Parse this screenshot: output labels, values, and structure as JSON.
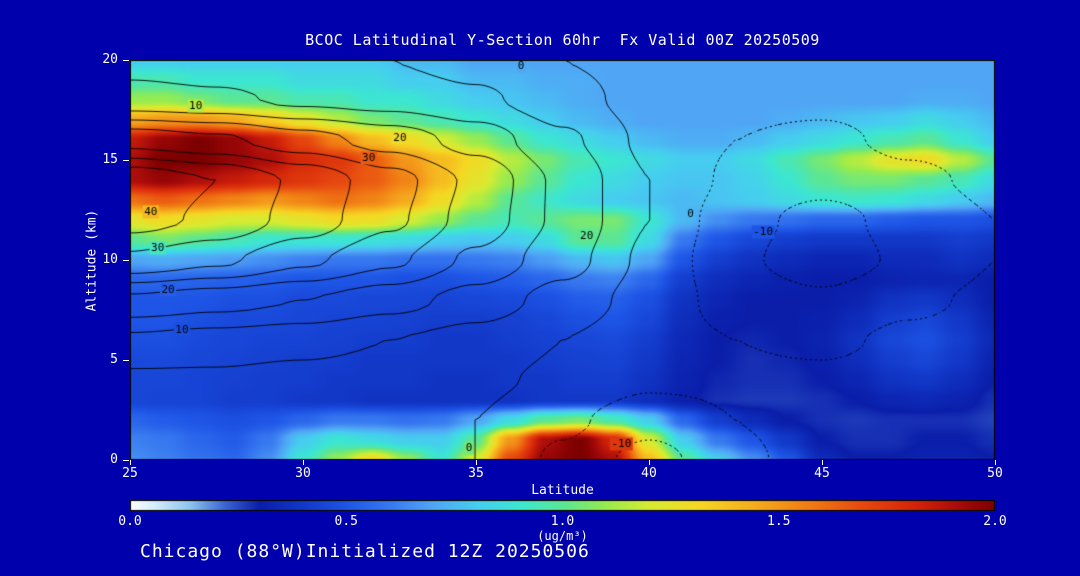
{
  "colors": {
    "background": "#0000AC",
    "text": "#FFFFFF",
    "frame": "#000000",
    "contour_line": "#000000"
  },
  "chart_data": {
    "type": "heatmap",
    "subtype": "filled-contour latitude-altitude cross-section with overlaid line contours",
    "title": "BCOC Latitudinal Y-Section 60hr  Fx Valid 00Z 20250509",
    "annotation": "Chicago (88°W)Initialized 12Z 20250506",
    "xlabel": "Latitude",
    "ylabel": "Altitude (km)",
    "xlim": [
      25,
      50
    ],
    "ylim": [
      0,
      20
    ],
    "x_ticks": [
      {
        "value": 25,
        "label": "25"
      },
      {
        "value": 30,
        "label": "30"
      },
      {
        "value": 35,
        "label": "35"
      },
      {
        "value": 40,
        "label": "40"
      },
      {
        "value": 45,
        "label": "45"
      },
      {
        "value": 50,
        "label": "50"
      }
    ],
    "y_ticks": [
      {
        "value": 0,
        "label": "0"
      },
      {
        "value": 5,
        "label": "5"
      },
      {
        "value": 10,
        "label": "10"
      },
      {
        "value": 15,
        "label": "15"
      },
      {
        "value": 20,
        "label": "20"
      }
    ],
    "colorbar": {
      "range": [
        0,
        2
      ],
      "ticks": [
        {
          "value": 0,
          "label": "0.0"
        },
        {
          "value": 0.5,
          "label": "0.5"
        },
        {
          "value": 1,
          "label": "1.0"
        },
        {
          "value": 1.5,
          "label": "1.5"
        },
        {
          "value": 2,
          "label": "2.0"
        }
      ],
      "unit_label": "(ug/m³)"
    },
    "colormap": [
      [
        0.0,
        "#FFFFFF"
      ],
      [
        0.06,
        "#D2ECFA"
      ],
      [
        0.14,
        "#8CC3EE"
      ],
      [
        0.22,
        "#3C64D2"
      ],
      [
        0.3,
        "#0A1EAA"
      ],
      [
        0.4,
        "#1238C8"
      ],
      [
        0.5,
        "#1E55E6"
      ],
      [
        0.6,
        "#3778F0"
      ],
      [
        0.7,
        "#50A5F5"
      ],
      [
        0.8,
        "#46CDF0"
      ],
      [
        0.9,
        "#3CE6D2"
      ],
      [
        1.0,
        "#5AE696"
      ],
      [
        1.1,
        "#96EB50"
      ],
      [
        1.2,
        "#D7EB32"
      ],
      [
        1.32,
        "#F5D723"
      ],
      [
        1.45,
        "#F5AA1E"
      ],
      [
        1.58,
        "#F07814"
      ],
      [
        1.7,
        "#E6460F"
      ],
      [
        1.82,
        "#D2230A"
      ],
      [
        1.92,
        "#A50A0A"
      ],
      [
        2.0,
        "#7D0000"
      ]
    ],
    "fill_field": {
      "units": "ug/m3",
      "lats": [
        25,
        26,
        27,
        28,
        29,
        30,
        31,
        32,
        33,
        34,
        35,
        36,
        37,
        38,
        39,
        40,
        41,
        42,
        43,
        44,
        45,
        46,
        47,
        48,
        49,
        50
      ],
      "alts": [
        0,
        1,
        2,
        3,
        4,
        5,
        6,
        7,
        8,
        9,
        10,
        11,
        12,
        13,
        14,
        15,
        16,
        17,
        18,
        19,
        20
      ],
      "values": [
        [
          0.65,
          0.62,
          0.58,
          0.55,
          0.65,
          0.9,
          1.1,
          1.3,
          1.1,
          0.9,
          1.2,
          1.7,
          1.95,
          2.0,
          1.9,
          1.4,
          1.0,
          0.8,
          0.65,
          0.5,
          0.35,
          0.3,
          0.3,
          0.32,
          0.32,
          0.3
        ],
        [
          0.62,
          0.6,
          0.55,
          0.52,
          0.6,
          0.8,
          0.9,
          0.85,
          0.8,
          0.8,
          1.0,
          1.5,
          1.9,
          2.0,
          1.8,
          1.2,
          0.8,
          0.6,
          0.5,
          0.4,
          0.3,
          0.28,
          0.28,
          0.3,
          0.3,
          0.28
        ],
        [
          0.55,
          0.52,
          0.5,
          0.48,
          0.5,
          0.55,
          0.6,
          0.6,
          0.58,
          0.6,
          0.7,
          0.85,
          1.0,
          1.05,
          0.95,
          0.8,
          0.55,
          0.42,
          0.35,
          0.3,
          0.28,
          0.27,
          0.28,
          0.28,
          0.28,
          0.26
        ],
        [
          0.45,
          0.44,
          0.44,
          0.42,
          0.42,
          0.4,
          0.4,
          0.38,
          0.38,
          0.38,
          0.38,
          0.38,
          0.4,
          0.4,
          0.4,
          0.36,
          0.31,
          0.28,
          0.27,
          0.27,
          0.28,
          0.3,
          0.33,
          0.34,
          0.32,
          0.28
        ],
        [
          0.45,
          0.45,
          0.44,
          0.43,
          0.42,
          0.42,
          0.4,
          0.4,
          0.4,
          0.38,
          0.38,
          0.4,
          0.4,
          0.42,
          0.42,
          0.38,
          0.32,
          0.29,
          0.28,
          0.28,
          0.3,
          0.33,
          0.38,
          0.4,
          0.36,
          0.3
        ],
        [
          0.46,
          0.46,
          0.45,
          0.44,
          0.43,
          0.42,
          0.42,
          0.4,
          0.4,
          0.4,
          0.4,
          0.4,
          0.42,
          0.43,
          0.44,
          0.4,
          0.33,
          0.3,
          0.28,
          0.29,
          0.31,
          0.36,
          0.42,
          0.45,
          0.4,
          0.32
        ],
        [
          0.48,
          0.48,
          0.46,
          0.45,
          0.44,
          0.44,
          0.43,
          0.42,
          0.42,
          0.4,
          0.4,
          0.42,
          0.43,
          0.45,
          0.46,
          0.42,
          0.34,
          0.3,
          0.29,
          0.3,
          0.32,
          0.38,
          0.45,
          0.48,
          0.42,
          0.34
        ],
        [
          0.5,
          0.5,
          0.48,
          0.46,
          0.46,
          0.45,
          0.44,
          0.44,
          0.43,
          0.42,
          0.42,
          0.43,
          0.45,
          0.48,
          0.5,
          0.45,
          0.36,
          0.31,
          0.3,
          0.3,
          0.31,
          0.35,
          0.42,
          0.45,
          0.4,
          0.32
        ],
        [
          0.5,
          0.5,
          0.5,
          0.48,
          0.48,
          0.46,
          0.46,
          0.45,
          0.45,
          0.44,
          0.45,
          0.46,
          0.48,
          0.52,
          0.53,
          0.48,
          0.38,
          0.33,
          0.3,
          0.3,
          0.3,
          0.32,
          0.38,
          0.4,
          0.36,
          0.3
        ],
        [
          0.55,
          0.55,
          0.54,
          0.53,
          0.52,
          0.5,
          0.5,
          0.5,
          0.48,
          0.48,
          0.5,
          0.52,
          0.55,
          0.6,
          0.62,
          0.55,
          0.42,
          0.36,
          0.33,
          0.31,
          0.3,
          0.3,
          0.32,
          0.33,
          0.33,
          0.3
        ],
        [
          0.7,
          0.72,
          0.7,
          0.68,
          0.65,
          0.62,
          0.6,
          0.6,
          0.58,
          0.58,
          0.6,
          0.62,
          0.68,
          0.75,
          0.78,
          0.7,
          0.5,
          0.42,
          0.38,
          0.35,
          0.33,
          0.33,
          0.35,
          0.35,
          0.38,
          0.35
        ],
        [
          1.0,
          1.05,
          1.0,
          0.95,
          0.9,
          0.9,
          0.9,
          0.88,
          0.85,
          0.8,
          0.78,
          0.8,
          0.85,
          1.0,
          1.0,
          0.85,
          0.6,
          0.5,
          0.45,
          0.42,
          0.4,
          0.4,
          0.4,
          0.4,
          0.42,
          0.4
        ],
        [
          1.25,
          1.3,
          1.25,
          1.2,
          1.2,
          1.25,
          1.3,
          1.28,
          1.2,
          1.1,
          1.0,
          0.95,
          1.0,
          1.05,
          1.05,
          0.9,
          0.75,
          0.65,
          0.6,
          0.58,
          0.55,
          0.55,
          0.52,
          0.5,
          0.5,
          0.48
        ],
        [
          1.6,
          1.65,
          1.6,
          1.55,
          1.5,
          1.55,
          1.6,
          1.55,
          1.45,
          1.3,
          1.15,
          1.0,
          0.92,
          0.85,
          0.8,
          0.78,
          0.75,
          0.78,
          0.8,
          0.85,
          0.9,
          0.92,
          0.9,
          0.85,
          0.8,
          0.75
        ],
        [
          1.9,
          1.95,
          1.9,
          1.85,
          1.8,
          1.75,
          1.7,
          1.65,
          1.55,
          1.4,
          1.25,
          1.1,
          1.0,
          0.9,
          0.85,
          0.8,
          0.78,
          0.78,
          0.82,
          0.9,
          1.0,
          1.05,
          1.05,
          1.0,
          0.95,
          0.85
        ],
        [
          1.9,
          2.0,
          2.0,
          1.95,
          1.9,
          1.8,
          1.75,
          1.65,
          1.5,
          1.4,
          1.3,
          1.15,
          1.05,
          0.95,
          0.9,
          0.85,
          0.8,
          0.8,
          0.85,
          0.95,
          1.05,
          1.15,
          1.25,
          1.3,
          1.15,
          1.0
        ],
        [
          1.85,
          1.95,
          2.0,
          1.95,
          1.85,
          1.7,
          1.55,
          1.4,
          1.3,
          1.2,
          1.1,
          1.0,
          0.9,
          0.85,
          0.8,
          0.75,
          0.72,
          0.72,
          0.75,
          0.8,
          0.85,
          0.9,
          0.95,
          1.0,
          0.9,
          0.8
        ],
        [
          1.45,
          1.5,
          1.5,
          1.45,
          1.35,
          1.25,
          1.15,
          1.05,
          1.0,
          0.95,
          0.9,
          0.85,
          0.8,
          0.75,
          0.72,
          0.7,
          0.7,
          0.7,
          0.7,
          0.72,
          0.75,
          0.78,
          0.8,
          0.85,
          0.8,
          0.75
        ],
        [
          1.1,
          1.1,
          1.05,
          1.0,
          1.0,
          0.95,
          0.95,
          0.9,
          0.9,
          0.85,
          0.8,
          0.78,
          0.75,
          0.72,
          0.7,
          0.7,
          0.7,
          0.7,
          0.7,
          0.7,
          0.7,
          0.7,
          0.7,
          0.72,
          0.72,
          0.7
        ],
        [
          0.95,
          0.95,
          0.9,
          0.9,
          0.9,
          0.85,
          0.85,
          0.85,
          0.8,
          0.8,
          0.75,
          0.75,
          0.72,
          0.72,
          0.7,
          0.7,
          0.7,
          0.7,
          0.7,
          0.7,
          0.7,
          0.7,
          0.7,
          0.7,
          0.7,
          0.7
        ],
        [
          0.8,
          0.8,
          0.8,
          0.8,
          0.8,
          0.8,
          0.8,
          0.8,
          0.75,
          0.75,
          0.7,
          0.7,
          0.7,
          0.7,
          0.7,
          0.7,
          0.7,
          0.7,
          0.7,
          0.7,
          0.7,
          0.7,
          0.7,
          0.7,
          0.7,
          0.7
        ]
      ]
    },
    "contour_field": {
      "levels": [
        -15,
        -10,
        -5,
        0,
        5,
        10,
        15,
        20,
        25,
        30,
        35,
        40
      ],
      "negative_style": "dotted",
      "lats": [
        25,
        27.5,
        30,
        32.5,
        35,
        37.5,
        40,
        42.5,
        45,
        47.5,
        50
      ],
      "alts": [
        0,
        2,
        4,
        6,
        8,
        10,
        12,
        14,
        16,
        18,
        20
      ],
      "values": [
        [
          0,
          0.5,
          1,
          0.5,
          0,
          -6,
          -12,
          -6,
          -3,
          -1,
          -1
        ],
        [
          1,
          1,
          1,
          0.5,
          0,
          -4,
          -8,
          -5,
          -3,
          -2,
          -1
        ],
        [
          4,
          4,
          3,
          2,
          1,
          -1,
          -4,
          -4,
          -4,
          -3,
          -2
        ],
        [
          9,
          8,
          7,
          5,
          3,
          0,
          -3,
          -5,
          -6,
          -4,
          -3
        ],
        [
          19,
          17,
          15,
          12,
          8,
          3,
          -2,
          -7,
          -9,
          -6,
          -4
        ],
        [
          34,
          31,
          26,
          21,
          14,
          7,
          -1,
          -9,
          -13,
          -9,
          -5
        ],
        [
          42,
          39,
          33,
          26,
          18,
          9,
          0,
          -8,
          -12,
          -8,
          -5
        ],
        [
          44,
          40,
          34,
          27,
          19,
          9,
          0,
          -6,
          -8,
          -6,
          -4
        ],
        [
          28,
          26,
          22,
          18,
          13,
          6,
          -1,
          -5,
          -6,
          -4,
          -3
        ],
        [
          12,
          11,
          9,
          8,
          6,
          2,
          -2,
          -4,
          -4,
          -3,
          -2
        ],
        [
          8,
          7,
          6,
          5,
          3,
          0,
          -2,
          -3,
          -3,
          -2,
          -2
        ]
      ],
      "labels": [
        {
          "text": "10",
          "lat": 26.9,
          "alt": 17.7
        },
        {
          "text": "20",
          "lat": 32.8,
          "alt": 16.1
        },
        {
          "text": "30",
          "lat": 31.9,
          "alt": 15.1
        },
        {
          "text": "40",
          "lat": 25.6,
          "alt": 12.4
        },
        {
          "text": "30",
          "lat": 25.8,
          "alt": 10.6
        },
        {
          "text": "20",
          "lat": 26.1,
          "alt": 8.5
        },
        {
          "text": "10",
          "lat": 26.5,
          "alt": 6.5
        },
        {
          "text": "0",
          "lat": 36.3,
          "alt": 19.7
        },
        {
          "text": "20",
          "lat": 38.2,
          "alt": 11.2
        },
        {
          "text": "0",
          "lat": 41.2,
          "alt": 12.3
        },
        {
          "text": "-10",
          "lat": 43.3,
          "alt": 11.4
        },
        {
          "text": "0",
          "lat": 34.8,
          "alt": 0.6
        },
        {
          "text": "-10",
          "lat": 39.2,
          "alt": 0.8
        }
      ]
    }
  }
}
